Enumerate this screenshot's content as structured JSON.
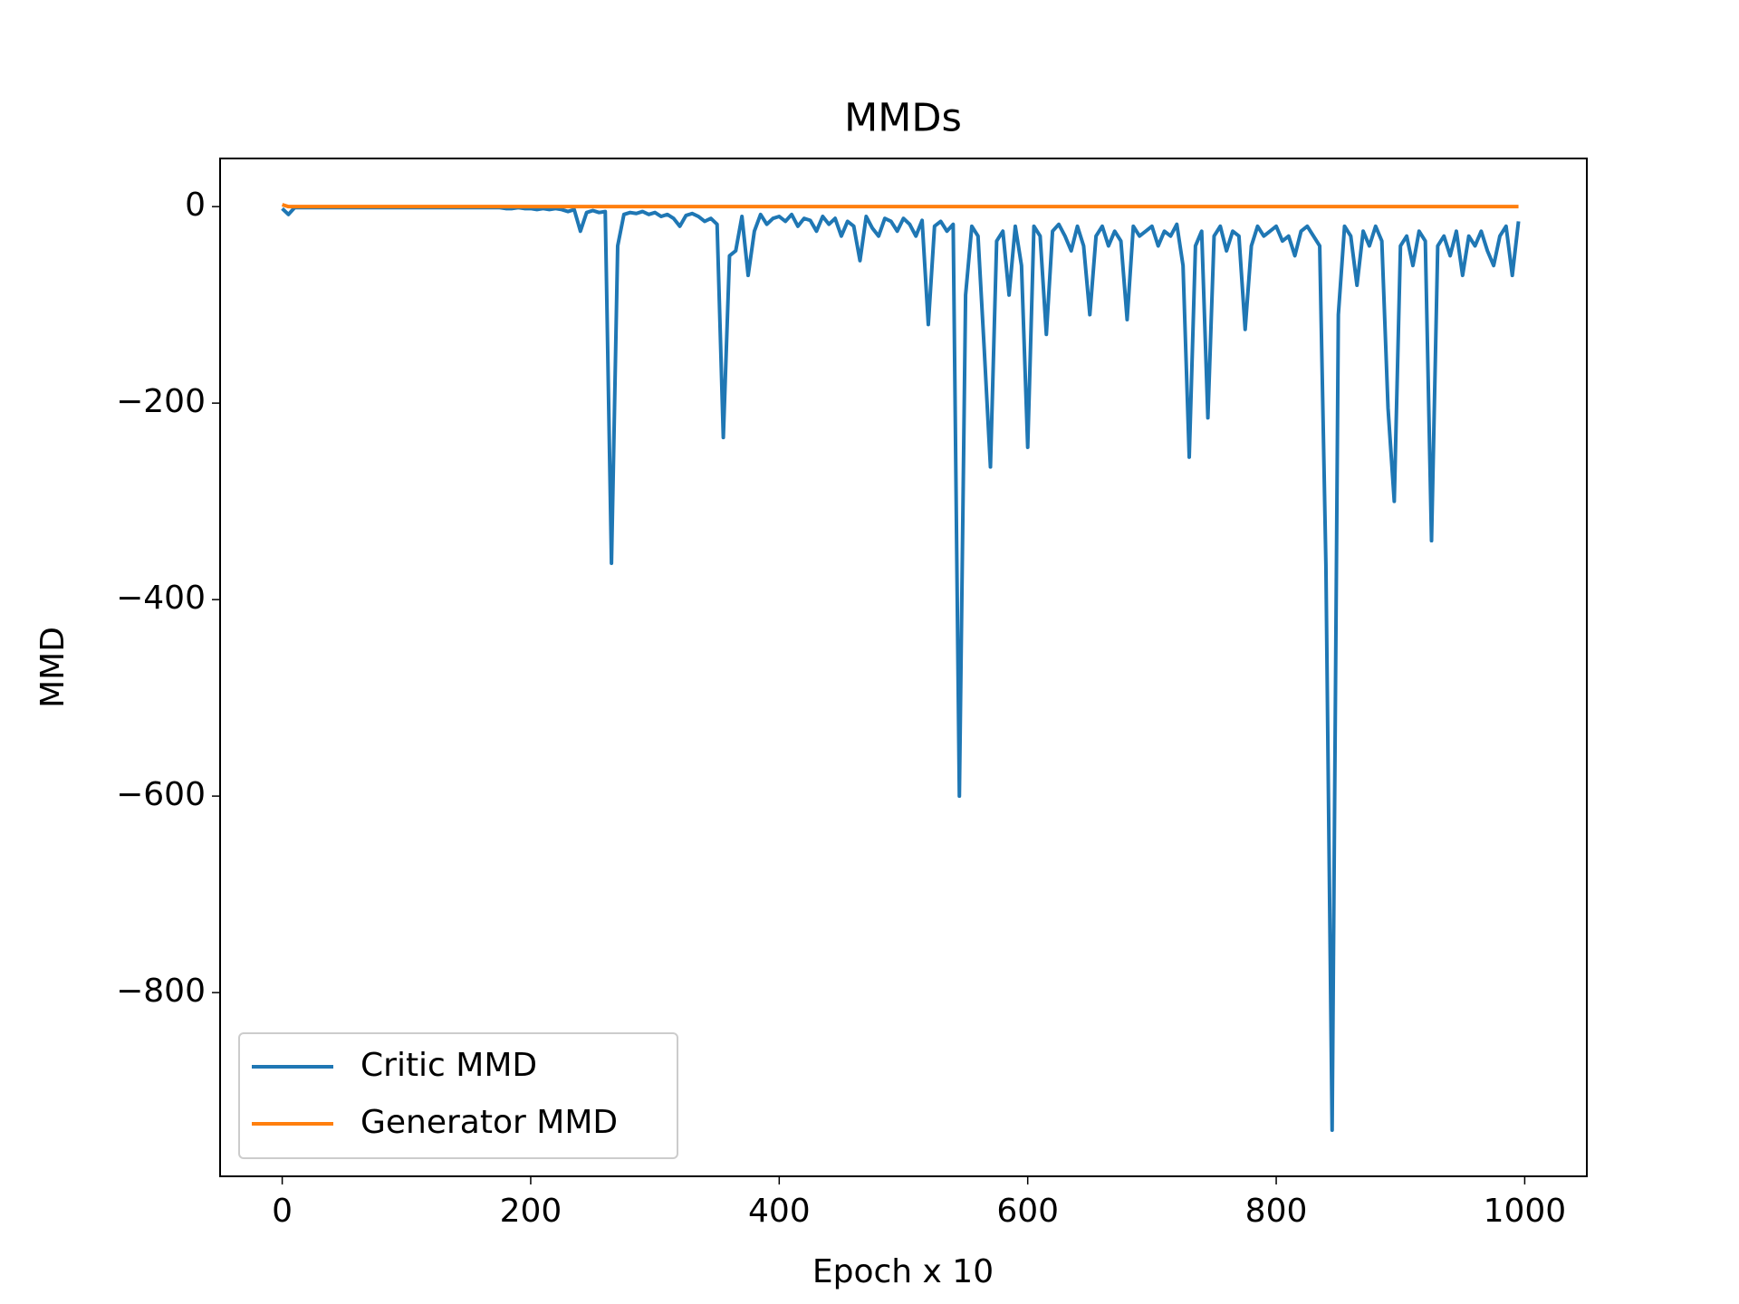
{
  "chart_data": {
    "type": "line",
    "title": "MMDs",
    "x_label": "Epoch x 10",
    "y_label": "MMD",
    "x": [
      0,
      5,
      10,
      15,
      20,
      25,
      30,
      35,
      40,
      45,
      50,
      55,
      60,
      65,
      70,
      75,
      80,
      85,
      90,
      95,
      100,
      105,
      110,
      115,
      120,
      125,
      130,
      135,
      140,
      145,
      150,
      155,
      160,
      165,
      170,
      175,
      180,
      185,
      190,
      195,
      200,
      205,
      210,
      215,
      220,
      225,
      230,
      235,
      240,
      245,
      250,
      255,
      260,
      265,
      270,
      275,
      280,
      285,
      290,
      295,
      300,
      305,
      310,
      315,
      320,
      325,
      330,
      335,
      340,
      345,
      350,
      355,
      360,
      365,
      370,
      375,
      380,
      385,
      390,
      395,
      400,
      405,
      410,
      415,
      420,
      425,
      430,
      435,
      440,
      445,
      450,
      455,
      460,
      465,
      470,
      475,
      480,
      485,
      490,
      495,
      500,
      505,
      510,
      515,
      520,
      525,
      530,
      535,
      540,
      545,
      550,
      555,
      560,
      565,
      570,
      575,
      580,
      585,
      590,
      595,
      600,
      605,
      610,
      615,
      620,
      625,
      630,
      635,
      640,
      645,
      650,
      655,
      660,
      665,
      670,
      675,
      680,
      685,
      690,
      695,
      700,
      705,
      710,
      715,
      720,
      725,
      730,
      735,
      740,
      745,
      750,
      755,
      760,
      765,
      770,
      775,
      780,
      785,
      790,
      795,
      800,
      805,
      810,
      815,
      820,
      825,
      830,
      835,
      840,
      845,
      850,
      855,
      860,
      865,
      870,
      875,
      880,
      885,
      890,
      895,
      900,
      905,
      910,
      915,
      920,
      925,
      930,
      935,
      940,
      945,
      950,
      955,
      960,
      965,
      970,
      975,
      980,
      985,
      990,
      995
    ],
    "series": [
      {
        "name": "Critic MMD",
        "color": "#1f77b4",
        "values": [
          -2,
          -8,
          -1,
          -1,
          -1,
          -1,
          -1,
          -1,
          -1,
          -1,
          -1,
          -1,
          -1,
          -1,
          -1,
          -1,
          -1,
          -1,
          -1,
          -1,
          -1,
          -1,
          -1,
          -1,
          -1,
          -1,
          -1,
          -1,
          -1,
          -1,
          -1,
          -1,
          -1,
          -1,
          -1,
          -1,
          -2,
          -2,
          -1,
          -2,
          -2,
          -3,
          -2,
          -3,
          -2,
          -3,
          -5,
          -3,
          -25,
          -6,
          -4,
          -6,
          -5,
          -363,
          -40,
          -8,
          -6,
          -7,
          -5,
          -8,
          -6,
          -10,
          -8,
          -12,
          -20,
          -9,
          -7,
          -10,
          -15,
          -12,
          -18,
          -235,
          -50,
          -45,
          -10,
          -70,
          -25,
          -8,
          -18,
          -12,
          -10,
          -15,
          -8,
          -20,
          -12,
          -14,
          -25,
          -10,
          -18,
          -12,
          -30,
          -15,
          -20,
          -55,
          -10,
          -22,
          -30,
          -12,
          -15,
          -25,
          -12,
          -18,
          -30,
          -14,
          -120,
          -20,
          -15,
          -25,
          -18,
          -600,
          -90,
          -20,
          -30,
          -145,
          -265,
          -35,
          -25,
          -90,
          -20,
          -60,
          -245,
          -20,
          -30,
          -130,
          -25,
          -18,
          -30,
          -45,
          -20,
          -40,
          -110,
          -30,
          -20,
          -40,
          -25,
          -35,
          -115,
          -20,
          -30,
          -25,
          -20,
          -40,
          -25,
          -30,
          -18,
          -60,
          -255,
          -40,
          -25,
          -215,
          -30,
          -20,
          -45,
          -25,
          -30,
          -125,
          -40,
          -20,
          -30,
          -25,
          -20,
          -35,
          -30,
          -50,
          -25,
          -20,
          -30,
          -40,
          -365,
          -940,
          -110,
          -20,
          -30,
          -80,
          -25,
          -40,
          -20,
          -35,
          -205,
          -300,
          -40,
          -30,
          -60,
          -25,
          -35,
          -340,
          -40,
          -30,
          -50,
          -25,
          -70,
          -30,
          -40,
          -25,
          -45,
          -60,
          -30,
          -20,
          -70,
          -15
        ]
      },
      {
        "name": "Generator MMD",
        "color": "#ff7f0e",
        "values": [
          2,
          0,
          0,
          0,
          0,
          0,
          0,
          0,
          0,
          0,
          0,
          0,
          0,
          0,
          0,
          0,
          0,
          0,
          0,
          0,
          0,
          0,
          0,
          0,
          0,
          0,
          0,
          0,
          0,
          0,
          0,
          0,
          0,
          0,
          0,
          0,
          0,
          0,
          0,
          0,
          0,
          0,
          0,
          0,
          0,
          0,
          0,
          0,
          0,
          0,
          0,
          0,
          0,
          0,
          0,
          0,
          0,
          0,
          0,
          0,
          0,
          0,
          0,
          0,
          0,
          0,
          0,
          0,
          0,
          0,
          0,
          0,
          0,
          0,
          0,
          0,
          0,
          0,
          0,
          0,
          0,
          0,
          0,
          0,
          0,
          0,
          0,
          0,
          0,
          0,
          0,
          0,
          0,
          0,
          0,
          0,
          0,
          0,
          0,
          0,
          0,
          0,
          0,
          0,
          0,
          0,
          0,
          0,
          0,
          0,
          0,
          0,
          0,
          0,
          0,
          0,
          0,
          0,
          0,
          0,
          0,
          0,
          0,
          0,
          0,
          0,
          0,
          0,
          0,
          0,
          0,
          0,
          0,
          0,
          0,
          0,
          0,
          0,
          0,
          0,
          0,
          0,
          0,
          0,
          0,
          0,
          0,
          0,
          0,
          0,
          0,
          0,
          0,
          0,
          0,
          0,
          0,
          0,
          0,
          0,
          0,
          0,
          0,
          0,
          0,
          0,
          0,
          0,
          0,
          0,
          0,
          0,
          0,
          0,
          0,
          0,
          0,
          0,
          0,
          0,
          0,
          0,
          0,
          0,
          0,
          0,
          0,
          0,
          0,
          0,
          0,
          0,
          0,
          0,
          0,
          0,
          0,
          0,
          0,
          0
        ]
      }
    ],
    "xlim": [
      -50,
      1050
    ],
    "ylim": [
      -987,
      49
    ],
    "xticks": [
      0,
      200,
      400,
      600,
      800,
      1000
    ],
    "yticks": [
      0,
      {
        "value": -200,
        "label": "−200"
      },
      {
        "value": -400,
        "label": "−400"
      },
      {
        "value": -600,
        "label": "−600"
      },
      {
        "value": -800,
        "label": "−800"
      }
    ],
    "legend": "lower left"
  }
}
